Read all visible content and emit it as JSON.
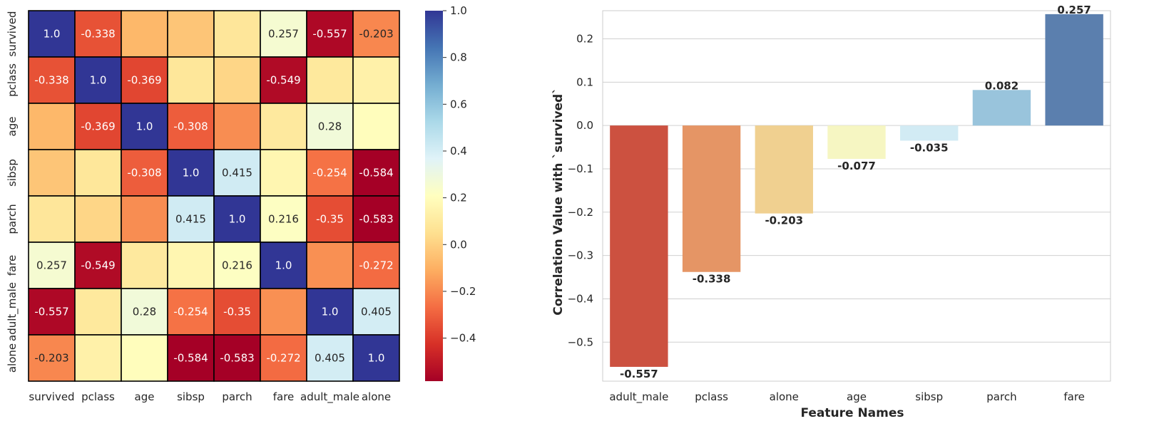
{
  "chart_data": [
    {
      "type": "heatmap",
      "title": "",
      "xlabel": "",
      "ylabel": "",
      "row_labels": [
        "survived",
        "pclass",
        "age",
        "sibsp",
        "parch",
        "fare",
        "adult_male",
        "alone"
      ],
      "col_labels": [
        "survived",
        "pclass",
        "age",
        "sibsp",
        "parch",
        "fare",
        "adult_male",
        "alone"
      ],
      "values": [
        [
          1.0,
          -0.338,
          -0.077,
          -0.035,
          0.082,
          0.257,
          -0.557,
          -0.203
        ],
        [
          -0.338,
          1.0,
          -0.369,
          0.083,
          0.018,
          -0.549,
          0.094,
          0.135
        ],
        [
          -0.077,
          -0.369,
          1.0,
          -0.308,
          -0.189,
          0.096,
          0.28,
          0.199
        ],
        [
          -0.035,
          0.083,
          -0.308,
          1.0,
          0.415,
          0.16,
          -0.254,
          -0.584
        ],
        [
          0.082,
          0.018,
          -0.189,
          0.415,
          1.0,
          0.216,
          -0.35,
          -0.583
        ],
        [
          0.257,
          -0.549,
          0.096,
          0.16,
          0.216,
          1.0,
          -0.182,
          -0.272
        ],
        [
          -0.557,
          0.094,
          0.28,
          -0.254,
          -0.35,
          -0.182,
          1.0,
          0.405
        ],
        [
          -0.203,
          0.135,
          0.199,
          -0.584,
          -0.583,
          -0.272,
          0.405,
          1.0
        ]
      ],
      "annotations": [
        [
          "1.0",
          "-0.338",
          "",
          "",
          "",
          "0.257",
          "-0.557",
          "-0.203"
        ],
        [
          "-0.338",
          "1.0",
          "-0.369",
          "",
          "",
          "-0.549",
          "",
          ""
        ],
        [
          "",
          "-0.369",
          "1.0",
          "-0.308",
          "",
          "",
          "0.28",
          ""
        ],
        [
          "",
          "",
          "-0.308",
          "1.0",
          "0.415",
          "",
          "-0.254",
          "-0.584"
        ],
        [
          "",
          "",
          "",
          "0.415",
          "1.0",
          "0.216",
          "-0.35",
          "-0.583"
        ],
        [
          "0.257",
          "-0.549",
          "",
          "",
          "0.216",
          "1.0",
          "",
          "-0.272"
        ],
        [
          "-0.557",
          "",
          "0.28",
          "-0.254",
          "-0.35",
          "",
          "1.0",
          "0.405"
        ],
        [
          "-0.203",
          "",
          "",
          "-0.584",
          "-0.583",
          "-0.272",
          "0.405",
          "1.0"
        ]
      ],
      "colormap": "RdYlBu",
      "vmin": -0.584,
      "vmax": 1.0,
      "colorbar_ticks": [
        1.0,
        0.8,
        0.6,
        0.4,
        0.2,
        0.0,
        -0.2,
        -0.4
      ],
      "colorbar_tick_labels": [
        "1.0",
        "0.8",
        "0.6",
        "0.4",
        "0.2",
        "0.0",
        "−0.2",
        "−0.4"
      ]
    },
    {
      "type": "bar",
      "title": "",
      "xlabel": "Feature Names",
      "ylabel": "Correlation Value with `survived`",
      "categories": [
        "adult_male",
        "pclass",
        "alone",
        "age",
        "sibsp",
        "parch",
        "fare"
      ],
      "values": [
        -0.557,
        -0.338,
        -0.203,
        -0.077,
        -0.035,
        0.082,
        0.257
      ],
      "value_labels": [
        "-0.557",
        "-0.338",
        "-0.203",
        "-0.077",
        "-0.035",
        "0.082",
        "0.257"
      ],
      "colors": [
        "#cc5140",
        "#e59565",
        "#f0d090",
        "#f6f6c2",
        "#d2ebf4",
        "#99c4dc",
        "#5b7fae"
      ],
      "ylim": [
        -0.59,
        0.265
      ],
      "yticks": [
        0.2,
        0.1,
        0.0,
        -0.1,
        -0.2,
        -0.3,
        -0.4,
        -0.5
      ],
      "ytick_labels": [
        "0.2",
        "0.1",
        "0.0",
        "−0.1",
        "−0.2",
        "−0.3",
        "−0.4",
        "−0.5"
      ],
      "grid": true
    }
  ]
}
